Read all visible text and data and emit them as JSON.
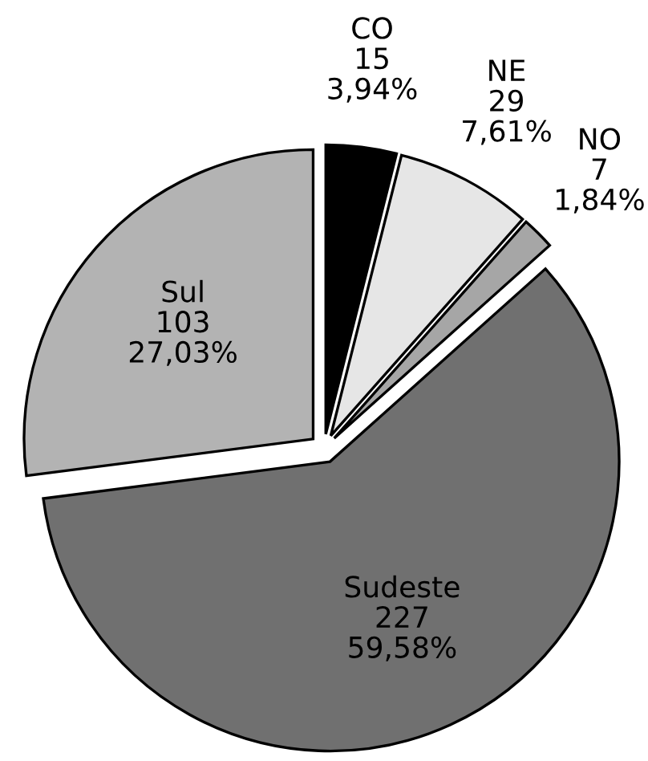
{
  "chart_data": {
    "type": "pie",
    "categories": [
      "CO",
      "NE",
      "NO",
      "Sudeste",
      "Sul"
    ],
    "values": [
      15,
      29,
      7,
      227,
      103
    ],
    "value_labels": [
      "15\n3,94%",
      "29\n7,61%",
      "7\n1,84%",
      "227\n59,58%",
      "103\n27,03%"
    ],
    "colors": [
      "#000000",
      "#e6e6e6",
      "#a6a6a6",
      "#707070",
      "#b3b3b3"
    ]
  }
}
